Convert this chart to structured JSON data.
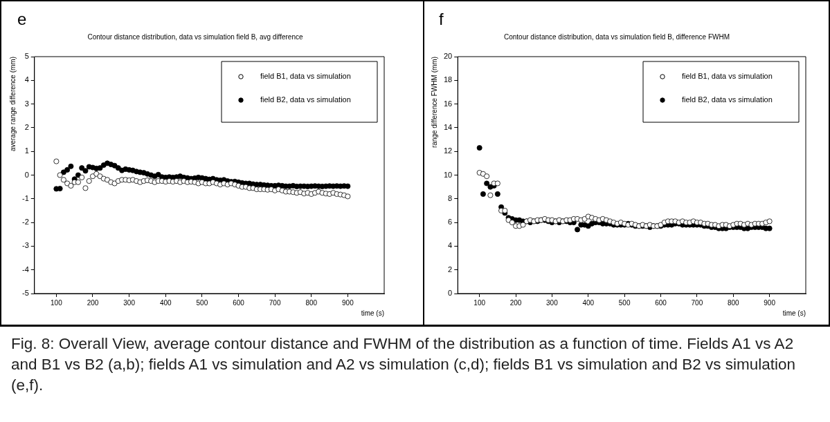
{
  "chart_data": [
    {
      "type": "scatter",
      "title": "Contour distance distribution, data vs simulation field B, avg difference",
      "xlabel": "time (s)",
      "ylabel": "average range difference (mm)",
      "annotations": [
        "e",
        "Fig. 8: Overall View, average contour distance and FWHM of the distribution as a function of time. Fields A1 vs A2 and B1 vs B2 (a,b); fields A1 vs simulation and A2 vs simulation (c,d); fields B1 vs simulation and B2 vs simulation (e,f)."
      ],
      "x": [
        100,
        110,
        120,
        130,
        140,
        150,
        160,
        170,
        180,
        190,
        200,
        210,
        220,
        230,
        240,
        250,
        260,
        270,
        280,
        290,
        300,
        310,
        320,
        330,
        340,
        350,
        360,
        370,
        380,
        390,
        400,
        410,
        420,
        430,
        440,
        450,
        460,
        470,
        480,
        490,
        500,
        510,
        520,
        530,
        540,
        550,
        560,
        570,
        580,
        590,
        600,
        610,
        620,
        630,
        640,
        650,
        660,
        670,
        680,
        690,
        700,
        710,
        720,
        730,
        740,
        750,
        760,
        770,
        780,
        790,
        800,
        810,
        820,
        830,
        840,
        850,
        860,
        870,
        880,
        890,
        900
      ],
      "series": [
        {
          "name": "field B1, data vs simulation",
          "color": "#000000",
          "values": [
            0.58,
            0.0,
            -0.2,
            -0.35,
            -0.45,
            -0.3,
            -0.3,
            -0.1,
            -0.55,
            -0.25,
            -0.05,
            0.05,
            -0.05,
            -0.15,
            -0.2,
            -0.3,
            -0.35,
            -0.25,
            -0.2,
            -0.2,
            -0.22,
            -0.2,
            -0.25,
            -0.3,
            -0.25,
            -0.22,
            -0.25,
            -0.3,
            -0.25,
            -0.25,
            -0.28,
            -0.25,
            -0.28,
            -0.25,
            -0.3,
            -0.25,
            -0.3,
            -0.28,
            -0.3,
            -0.35,
            -0.3,
            -0.35,
            -0.35,
            -0.3,
            -0.35,
            -0.4,
            -0.35,
            -0.4,
            -0.35,
            -0.4,
            -0.45,
            -0.5,
            -0.5,
            -0.55,
            -0.55,
            -0.6,
            -0.6,
            -0.6,
            -0.62,
            -0.6,
            -0.65,
            -0.6,
            -0.65,
            -0.7,
            -0.7,
            -0.72,
            -0.75,
            -0.72,
            -0.78,
            -0.75,
            -0.8,
            -0.75,
            -0.7,
            -0.75,
            -0.78,
            -0.8,
            -0.75,
            -0.8,
            -0.82,
            -0.85,
            -0.9
          ]
        },
        {
          "name": "field B2, data vs simulation",
          "color": "#000000",
          "values": [
            -0.58,
            -0.57,
            0.12,
            0.22,
            0.37,
            -0.17,
            0.0,
            0.3,
            0.18,
            0.35,
            0.32,
            0.28,
            0.3,
            0.42,
            0.5,
            0.45,
            0.4,
            0.3,
            0.2,
            0.25,
            0.22,
            0.2,
            0.15,
            0.12,
            0.1,
            0.05,
            0.0,
            -0.05,
            0.02,
            -0.08,
            -0.1,
            -0.08,
            -0.1,
            -0.08,
            -0.05,
            -0.1,
            -0.12,
            -0.15,
            -0.13,
            -0.1,
            -0.12,
            -0.15,
            -0.18,
            -0.15,
            -0.2,
            -0.22,
            -0.2,
            -0.25,
            -0.28,
            -0.27,
            -0.3,
            -0.33,
            -0.35,
            -0.35,
            -0.38,
            -0.4,
            -0.4,
            -0.42,
            -0.43,
            -0.45,
            -0.45,
            -0.43,
            -0.45,
            -0.47,
            -0.47,
            -0.45,
            -0.48,
            -0.47,
            -0.47,
            -0.48,
            -0.47,
            -0.46,
            -0.47,
            -0.48,
            -0.47,
            -0.46,
            -0.47,
            -0.46,
            -0.47,
            -0.46,
            -0.47
          ]
        }
      ],
      "xlim": [
        40,
        1000
      ],
      "xticks": [
        100,
        200,
        300,
        400,
        500,
        600,
        700,
        800,
        900
      ],
      "ylim": [
        -5,
        5
      ],
      "yticks": [
        -5,
        -4,
        -3,
        -2,
        -1,
        0,
        1,
        2,
        3,
        4,
        5
      ],
      "grid": false,
      "legend": "top right",
      "marker": "circle"
    },
    {
      "type": "scatter",
      "title": "Contour distance distribution, data vs simulation field B, difference FWHM",
      "xlabel": "time (s)",
      "ylabel": "range difference FWHM (mm)",
      "annotations": [
        "f"
      ],
      "x": [
        100,
        110,
        120,
        130,
        140,
        150,
        160,
        170,
        180,
        190,
        200,
        210,
        220,
        230,
        240,
        250,
        260,
        270,
        280,
        290,
        300,
        310,
        320,
        330,
        340,
        350,
        360,
        370,
        380,
        390,
        400,
        410,
        420,
        430,
        440,
        450,
        460,
        470,
        480,
        490,
        500,
        510,
        520,
        530,
        540,
        550,
        560,
        570,
        580,
        590,
        600,
        610,
        620,
        630,
        640,
        650,
        660,
        670,
        680,
        690,
        700,
        710,
        720,
        730,
        740,
        750,
        760,
        770,
        780,
        790,
        800,
        810,
        820,
        830,
        840,
        850,
        860,
        870,
        880,
        890,
        900
      ],
      "series": [
        {
          "name": "field B1, data vs simulation",
          "color": "#000000",
          "values": [
            10.2,
            10.1,
            9.9,
            8.3,
            9.3,
            9.3,
            7.0,
            7.0,
            6.2,
            6.0,
            5.7,
            5.7,
            5.8,
            6.1,
            6.2,
            6.1,
            6.2,
            6.2,
            6.3,
            6.2,
            6.2,
            6.1,
            6.2,
            6.1,
            6.2,
            6.2,
            6.3,
            6.3,
            6.2,
            6.3,
            6.5,
            6.4,
            6.3,
            6.2,
            6.3,
            6.2,
            6.1,
            6.0,
            5.9,
            6.0,
            5.9,
            5.8,
            5.9,
            5.8,
            5.7,
            5.8,
            5.7,
            5.8,
            5.7,
            5.7,
            5.8,
            6.0,
            6.1,
            6.1,
            6.1,
            6.0,
            6.1,
            6.0,
            6.0,
            6.1,
            6.0,
            6.0,
            5.9,
            5.9,
            5.8,
            5.8,
            5.7,
            5.8,
            5.8,
            5.7,
            5.8,
            5.9,
            5.9,
            5.8,
            5.9,
            5.8,
            5.9,
            5.9,
            5.9,
            6.0,
            6.1
          ]
        },
        {
          "name": "field B2, data vs simulation",
          "color": "#000000",
          "values": [
            12.3,
            8.4,
            9.3,
            9.0,
            9.1,
            8.4,
            7.3,
            6.8,
            6.4,
            6.3,
            6.2,
            6.2,
            6.1,
            6.1,
            6.0,
            6.1,
            6.1,
            6.2,
            6.2,
            6.1,
            6.0,
            6.1,
            6.0,
            6.1,
            6.1,
            6.0,
            6.0,
            5.4,
            5.8,
            5.8,
            5.7,
            5.9,
            6.0,
            6.0,
            5.9,
            5.9,
            5.9,
            5.8,
            5.8,
            5.8,
            5.8,
            5.9,
            5.8,
            5.7,
            5.7,
            5.7,
            5.7,
            5.6,
            5.7,
            5.7,
            5.7,
            5.8,
            5.8,
            5.8,
            5.9,
            5.9,
            5.8,
            5.8,
            5.8,
            5.8,
            5.8,
            5.8,
            5.7,
            5.7,
            5.6,
            5.6,
            5.5,
            5.5,
            5.5,
            5.6,
            5.6,
            5.6,
            5.6,
            5.5,
            5.5,
            5.6,
            5.6,
            5.6,
            5.6,
            5.5,
            5.5
          ]
        }
      ],
      "xlim": [
        40,
        1000
      ],
      "xticks": [
        100,
        200,
        300,
        400,
        500,
        600,
        700,
        800,
        900
      ],
      "ylim": [
        0,
        20
      ],
      "yticks": [
        0,
        2,
        4,
        6,
        8,
        10,
        12,
        14,
        16,
        18,
        20
      ],
      "grid": false,
      "legend": "top right",
      "marker": "circle"
    }
  ]
}
